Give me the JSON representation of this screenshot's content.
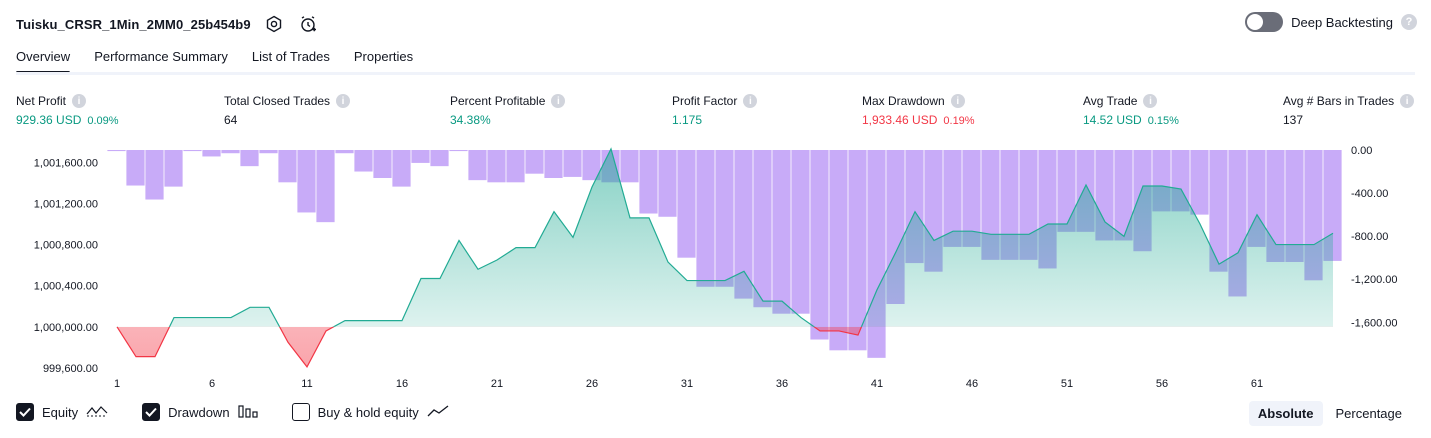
{
  "header": {
    "strategy_name": "Tuisku_CRSR_1Min_2MM0_25b454b9",
    "icons": [
      "settings-icon",
      "alert-add-icon"
    ],
    "deep_backtesting_label": "Deep Backtesting",
    "deep_backtesting_enabled": false,
    "help_glyph": "?"
  },
  "tabs": [
    {
      "label": "Overview",
      "active": true
    },
    {
      "label": "Performance Summary",
      "active": false
    },
    {
      "label": "List of Trades",
      "active": false
    },
    {
      "label": "Properties",
      "active": false
    }
  ],
  "metrics": {
    "info_glyph": "i",
    "net_profit": {
      "label": "Net Profit",
      "value": "929.36 USD",
      "pct": "0.09%"
    },
    "total_closed_trades": {
      "label": "Total Closed Trades",
      "value": "64"
    },
    "percent_profitable": {
      "label": "Percent Profitable",
      "value": "34.38%"
    },
    "profit_factor": {
      "label": "Profit Factor",
      "value": "1.175"
    },
    "max_drawdown": {
      "label": "Max Drawdown",
      "value": "1,933.46 USD",
      "pct": "0.19%"
    },
    "avg_trade": {
      "label": "Avg Trade",
      "value": "14.52 USD",
      "pct": "0.15%"
    },
    "avg_bars": {
      "label": "Avg # Bars in Trades",
      "value": "137"
    }
  },
  "colors": {
    "positive": "#089981",
    "negative": "#f23645",
    "equity_line_up": "#22ab94",
    "equity_line_peak": "#2962ff",
    "drawdown_bar": "#c5a7f8"
  },
  "chart_data": {
    "type": "area",
    "x_ticks": [
      "1",
      "6",
      "11",
      "16",
      "21",
      "26",
      "31",
      "36",
      "41",
      "46",
      "51",
      "56",
      "61"
    ],
    "left_axis": {
      "ticks": [
        "1,001,600.00",
        "1,001,200.00",
        "1,000,800.00",
        "1,000,400.00",
        "1,000,000.00",
        "999,600.00"
      ],
      "ylim": [
        999580,
        1001720
      ],
      "baseline": 1000000
    },
    "right_axis": {
      "ticks": [
        "0.00",
        "-400.00",
        "-800.00",
        "-1,200.00",
        "-1,600.00"
      ],
      "ylim": [
        -1950,
        0
      ]
    },
    "series": [
      {
        "name": "Equity",
        "x": [
          1,
          2,
          3,
          4,
          5,
          6,
          7,
          8,
          9,
          10,
          11,
          12,
          13,
          14,
          15,
          16,
          17,
          18,
          19,
          20,
          21,
          22,
          23,
          24,
          25,
          26,
          27,
          28,
          29,
          30,
          31,
          32,
          33,
          34,
          35,
          36,
          37,
          38,
          39,
          40,
          41,
          42,
          43,
          44,
          45,
          46,
          47,
          48,
          49,
          50,
          51,
          52,
          53,
          54,
          55,
          56,
          57,
          58,
          59,
          60,
          61,
          62,
          63,
          64,
          65
        ],
        "values": [
          1000000,
          999710,
          999710,
          1000090,
          1000090,
          1000090,
          1000090,
          1000190,
          1000190,
          999850,
          999610,
          999960,
          1000060,
          1000060,
          1000060,
          1000060,
          1000470,
          1000470,
          1000840,
          1000560,
          1000650,
          1000770,
          1000770,
          1001120,
          1000870,
          1001360,
          1001730,
          1001060,
          1001060,
          1000630,
          1000450,
          1000450,
          1000450,
          1000540,
          1000250,
          1000250,
          1000090,
          999960,
          999960,
          999920,
          1000360,
          1000730,
          1001120,
          1000840,
          1000930,
          1000930,
          1000900,
          1000900,
          1000900,
          1001000,
          1001000,
          1001380,
          1001020,
          1000880,
          1001370,
          1001370,
          1001340,
          1001000,
          1000610,
          1000720,
          1001090,
          1000800,
          1000800,
          1000800,
          1000910
        ]
      },
      {
        "name": "Drawdown",
        "x": [
          1,
          2,
          3,
          4,
          5,
          6,
          7,
          8,
          9,
          10,
          11,
          12,
          13,
          14,
          15,
          16,
          17,
          18,
          19,
          20,
          21,
          22,
          23,
          24,
          25,
          26,
          27,
          28,
          29,
          30,
          31,
          32,
          33,
          34,
          35,
          36,
          37,
          38,
          39,
          40,
          41,
          42,
          43,
          44,
          45,
          46,
          47,
          48,
          49,
          50,
          51,
          52,
          53,
          54,
          55,
          56,
          57,
          58,
          59,
          60,
          61,
          62,
          63,
          64,
          65
        ],
        "values": [
          -10,
          -330,
          -460,
          -340,
          -10,
          -60,
          -30,
          -150,
          -30,
          -300,
          -580,
          -670,
          -30,
          -200,
          -260,
          -340,
          -120,
          -150,
          -10,
          -280,
          -300,
          -300,
          -220,
          -260,
          -250,
          -280,
          -300,
          -300,
          -590,
          -620,
          -1000,
          -1270,
          -1270,
          -1380,
          -1460,
          -1520,
          -1520,
          -1760,
          -1860,
          -1860,
          -1930,
          -1430,
          -1050,
          -1130,
          -900,
          -900,
          -1020,
          -1020,
          -1020,
          -1100,
          -760,
          -760,
          -840,
          -840,
          -940,
          -570,
          -570,
          -600,
          -1130,
          -1360,
          -900,
          -1040,
          -1040,
          -1210,
          -1030
        ]
      },
      {
        "name": "Buy & hold equity",
        "values": []
      }
    ]
  },
  "legend": {
    "equity": {
      "label": "Equity",
      "checked": true,
      "icon": "equity-line-icon"
    },
    "drawdown": {
      "label": "Drawdown",
      "checked": true,
      "icon": "drawdown-bars-icon"
    },
    "buy_hold": {
      "label": "Buy & hold equity",
      "checked": false,
      "icon": "buy-hold-line-icon"
    }
  },
  "mode": {
    "absolute": "Absolute",
    "percentage": "Percentage",
    "selected": "Absolute"
  }
}
